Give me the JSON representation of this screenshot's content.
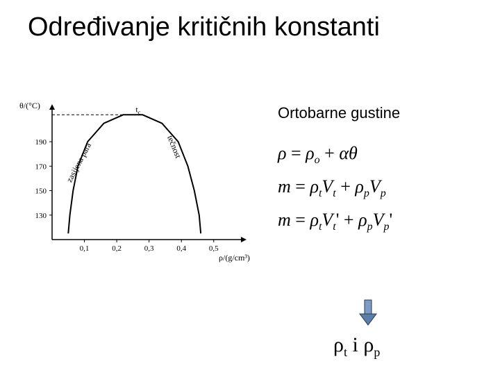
{
  "title": "Određivanje kritičnih konstanti",
  "subtitle": "Ortobarne gustine",
  "equations": {
    "e1_lhs": "ρ",
    "e1_eq": " = ",
    "e1_r1": "ρ",
    "e1_r1sub": "o",
    "e1_plus": " + ",
    "e1_r2": "αθ",
    "e2_lhs": "m",
    "e2_eq": " = ",
    "e2_t1": "ρ",
    "e2_t1s": "t",
    "e2_t2": "V",
    "e2_t2s": "t",
    "e2_plus": " + ",
    "e2_t3": "ρ",
    "e2_t3s": "p",
    "e2_t4": "V",
    "e2_t4s": "p",
    "e3_lhs": "m",
    "e3_eq": " = ",
    "e3_t1": "ρ",
    "e3_t1s": "t",
    "e3_t2": "V",
    "e3_t2s": "t",
    "e3_prime1": "'",
    "e3_plus": " + ",
    "e3_t3": "ρ",
    "e3_t3s": "p",
    "e3_t4": "V",
    "e3_t4s": "p",
    "e3_prime2": "'"
  },
  "rho_line": {
    "r1": "ρ",
    "r1s": "t",
    "mid": " i ",
    "r2": "ρ",
    "r2s": "p"
  },
  "chart": {
    "type": "line",
    "background_color": "#ffffff",
    "axis_color": "#000000",
    "line_color": "#000000",
    "line_width": 2,
    "ylabel": "θ/(°C)",
    "xlabel": "ρ/(g/cm³)",
    "tc_label": "t",
    "tc_sub": "c",
    "left_curve_label": "zasijena para",
    "right_curve_label": "tečnost",
    "yticks": [
      130,
      150,
      170,
      190
    ],
    "xticks": [
      0.1,
      0.2,
      0.3,
      0.4,
      0.5
    ],
    "xlim": [
      0,
      0.58
    ],
    "ylim": [
      110,
      215
    ],
    "label_fontsize": 12,
    "tick_fontsize": 11,
    "curve_points": [
      [
        0.05,
        115
      ],
      [
        0.055,
        130
      ],
      [
        0.065,
        150
      ],
      [
        0.08,
        170
      ],
      [
        0.11,
        190
      ],
      [
        0.16,
        205
      ],
      [
        0.22,
        212
      ],
      [
        0.28,
        212
      ],
      [
        0.34,
        205
      ],
      [
        0.39,
        190
      ],
      [
        0.42,
        170
      ],
      [
        0.44,
        150
      ],
      [
        0.455,
        130
      ],
      [
        0.46,
        115
      ]
    ],
    "dash_line": {
      "from": [
        0.05,
        212
      ],
      "to": [
        0.25,
        212
      ]
    }
  },
  "arrow": {
    "shaft_color": "#7a9cc6",
    "head_color": "#5a7ea8",
    "border_color": "#2a3a50"
  }
}
